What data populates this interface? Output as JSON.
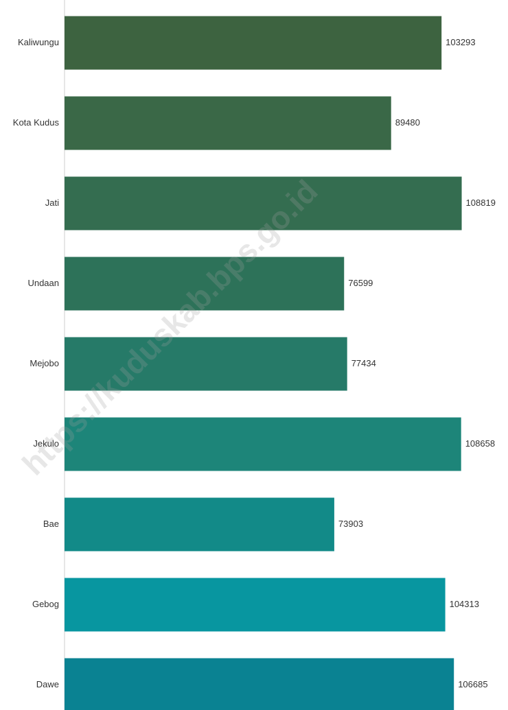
{
  "chart_data": {
    "type": "hbar",
    "categories": [
      "Kaliwungu",
      "Kota Kudus",
      "Jati",
      "Undaan",
      "Mejobo",
      "Jekulo",
      "Bae",
      "Gebog",
      "Dawe"
    ],
    "values": [
      103293,
      89480,
      108819,
      76599,
      77434,
      108658,
      73903,
      104313,
      106685
    ],
    "colors": [
      "#3d6340",
      "#3a6847",
      "#346d50",
      "#2d7259",
      "#267a68",
      "#1d8579",
      "#128a88",
      "#0896a0",
      "#0a8292"
    ],
    "xlim": [
      0,
      120000
    ],
    "watermark": "https://kuduskab.bps.go.id"
  }
}
